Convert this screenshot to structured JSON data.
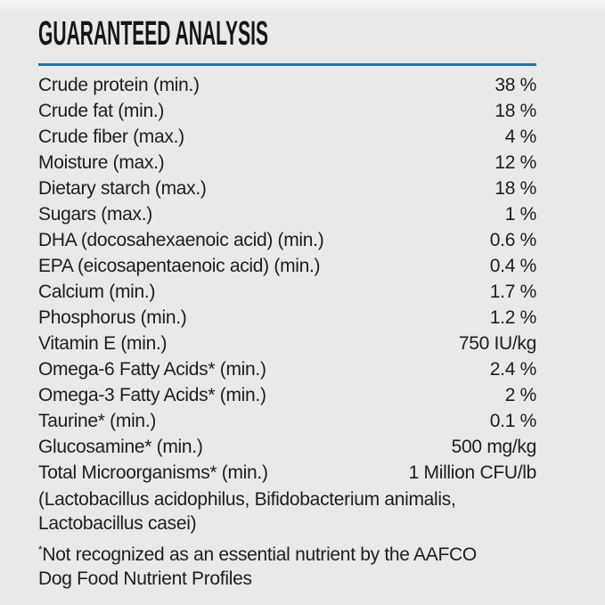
{
  "theme": {
    "background": "#e9e9e9",
    "text_color": "#1d1d1d",
    "rule_color": "#2273a4"
  },
  "header": {
    "title": "GUARANTEED ANALYSIS"
  },
  "analysis": {
    "rows": [
      {
        "label": "Crude protein (min.)",
        "value": "38 %"
      },
      {
        "label": "Crude fat (min.)",
        "value": "18 %"
      },
      {
        "label": "Crude fiber (max.)",
        "value": "4 %"
      },
      {
        "label": "Moisture (max.)",
        "value": "12 %"
      },
      {
        "label": "Dietary starch (max.)",
        "value": "18 %"
      },
      {
        "label": "Sugars (max.)",
        "value": "1 %"
      },
      {
        "label": "DHA (docosahexaenoic acid) (min.)",
        "value": "0.6 %"
      },
      {
        "label": "EPA (eicosapentaenoic acid) (min.)",
        "value": "0.4 %"
      },
      {
        "label": "Calcium (min.)",
        "value": "1.7 %"
      },
      {
        "label": "Phosphorus (min.)",
        "value": "1.2 %"
      },
      {
        "label": "Vitamin E (min.)",
        "value": "750 IU/kg"
      },
      {
        "label": "Omega-6 Fatty Acids* (min.)",
        "value": "2.4 %"
      },
      {
        "label": "Omega-3 Fatty Acids* (min.)",
        "value": "2 %"
      },
      {
        "label": "Taurine* (min.)",
        "value": "0.1 %"
      },
      {
        "label": "Glucosamine* (min.)",
        "value": "500 mg/kg"
      },
      {
        "label": "Total Microorganisms* (min.)",
        "value": "1 Million CFU/lb"
      }
    ],
    "species_note_lines": [
      "(Lactobacillus acidophilus, Bifidobacterium animalis,",
      "Lactobacillus casei)"
    ],
    "footnote": {
      "marker": "*",
      "lines": [
        "Not recognized as an essential nutrient by the AAFCO",
        "Dog Food Nutrient Profiles"
      ]
    }
  }
}
